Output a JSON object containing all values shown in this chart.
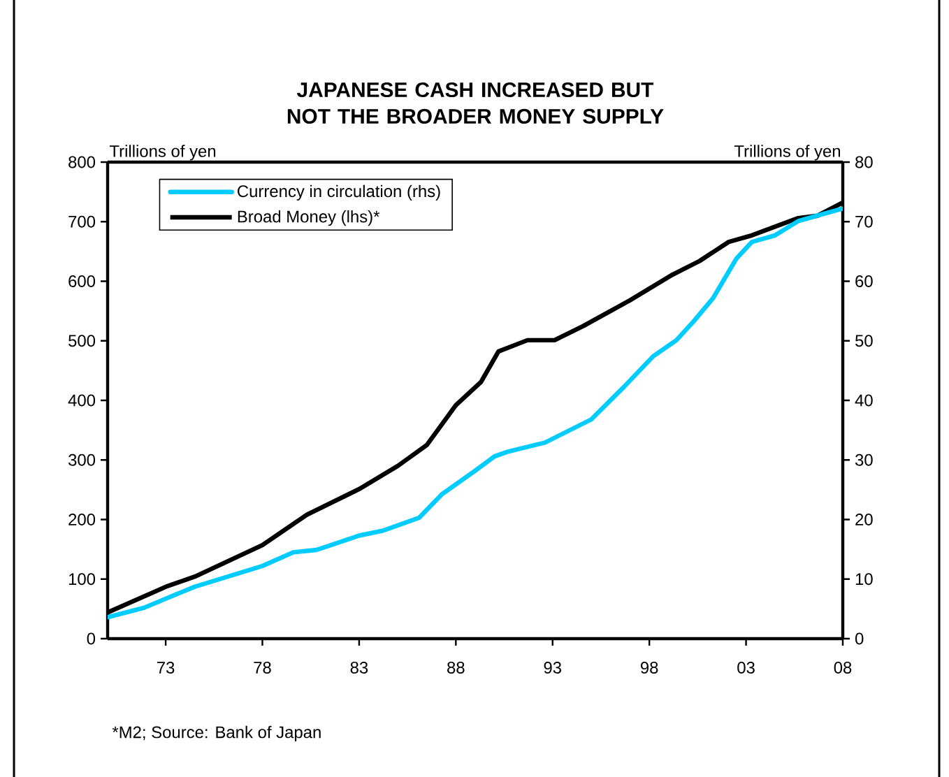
{
  "chart_data": {
    "type": "line",
    "title": "JAPANESE CASH INCREASED BUT NOT THE BROADER MONEY SUPPLY",
    "ylabel": "Trillions of yen",
    "y2label": "Trillions of yen",
    "annotations": [
      "*M2; Source: Bank of Japan"
    ],
    "xlim": [
      1970,
      2008
    ],
    "xticks": [
      {
        "value": 1973,
        "label": "73"
      },
      {
        "value": 1978,
        "label": "78"
      },
      {
        "value": 1983,
        "label": "83"
      },
      {
        "value": 1988,
        "label": "88"
      },
      {
        "value": 1993,
        "label": "93"
      },
      {
        "value": 1998,
        "label": "98"
      },
      {
        "value": 2003,
        "label": "03"
      },
      {
        "value": 2008,
        "label": "08"
      }
    ],
    "ylim": [
      0,
      800
    ],
    "yticks": [
      0,
      100,
      200,
      300,
      400,
      500,
      600,
      700,
      800
    ],
    "y2lim": [
      0,
      80
    ],
    "y2ticks": [
      0,
      10,
      20,
      30,
      40,
      50,
      60,
      70,
      80
    ],
    "grid": false,
    "legend": "top left",
    "line_style": "solid",
    "marker": "none",
    "series": [
      {
        "name": "Currency in circulation (rhs)",
        "color": "#00ccff",
        "axis": "y2",
        "x": [
          1970,
          1971.9,
          1973,
          1974.5,
          1978,
          1979.6,
          1980.8,
          1983,
          1984.2,
          1986.1,
          1987.3,
          1989,
          1990,
          1990.7,
          1992.6,
          1995,
          1996.7,
          1998.2,
          1999.4,
          2000.3,
          2001.3,
          2002.5,
          2003.3,
          2004.5,
          2005.7,
          2007,
          2008
        ],
        "values": [
          3.6,
          5.2,
          6.7,
          8.7,
          12.2,
          14.5,
          14.9,
          17.3,
          18.1,
          20.3,
          24.3,
          28.2,
          30.6,
          31.4,
          32.9,
          36.8,
          42.3,
          47.4,
          50.1,
          53.3,
          57.2,
          63.8,
          66.6,
          67.7,
          70.1,
          71.3,
          72.2
        ]
      },
      {
        "name": "Broad Money (lhs)*",
        "color": "#000000",
        "axis": "y",
        "x": [
          1970,
          1973,
          1974.5,
          1978,
          1980.3,
          1983,
          1985,
          1986.5,
          1988,
          1989.3,
          1990.2,
          1991.7,
          1993.1,
          1994.6,
          1997,
          1999.2,
          2000.6,
          2002.1,
          2003.3,
          2005.7,
          2006.7,
          2008
        ],
        "values": [
          44,
          87,
          104,
          157,
          208,
          251,
          290,
          325,
          392,
          431,
          482,
          501,
          501,
          525,
          568,
          611,
          634,
          666,
          677,
          706,
          710,
          732
        ]
      }
    ]
  }
}
